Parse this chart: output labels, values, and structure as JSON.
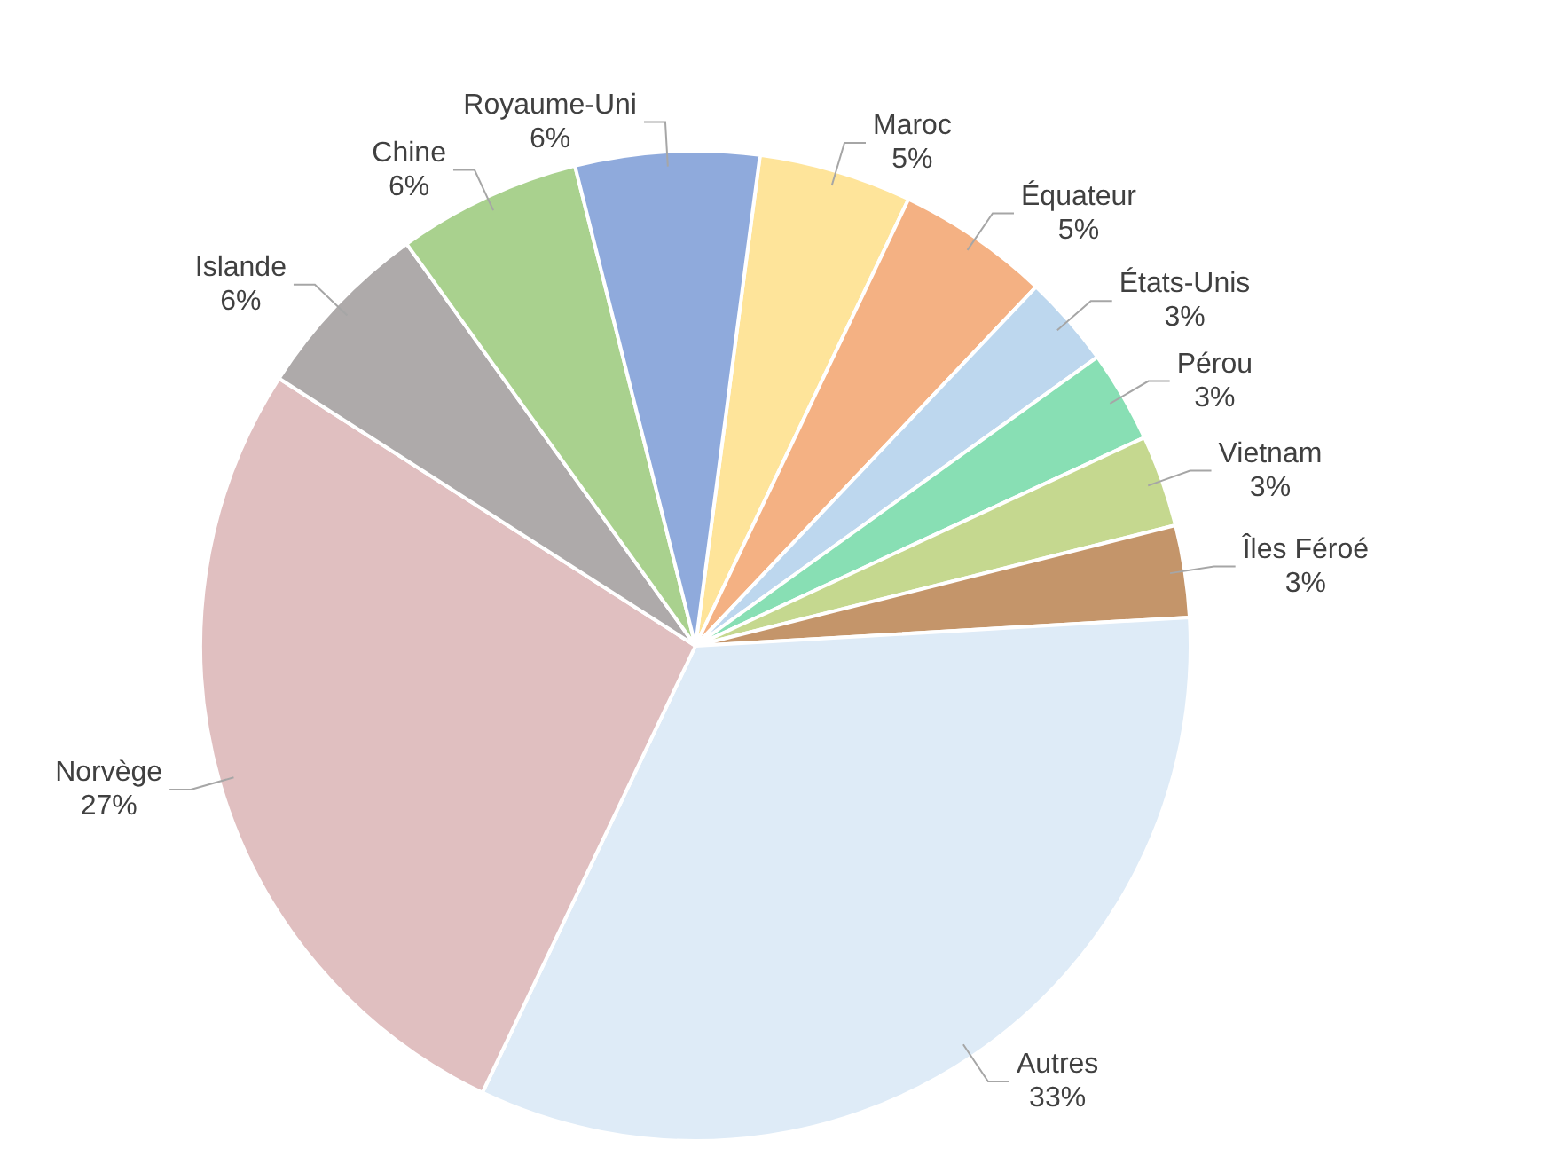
{
  "chart_data": {
    "type": "pie",
    "categories": [
      "Maroc",
      "Équateur",
      "États-Unis",
      "Pérou",
      "Vietnam",
      "Îles Féroé",
      "Autres",
      "Norvège",
      "Islande",
      "Chine",
      "Royaume-Uni"
    ],
    "values": [
      5,
      5,
      3,
      3,
      3,
      3,
      33,
      27,
      6,
      6,
      6
    ],
    "value_labels": [
      "5%",
      "5%",
      "3%",
      "3%",
      "3%",
      "3%",
      "33%",
      "27%",
      "6%",
      "6%",
      "6%"
    ],
    "colors": [
      "#fee49a",
      "#f4b183",
      "#bdd7ee",
      "#88dfb4",
      "#c5d88f",
      "#c4956a",
      "#deebf7",
      "#e0bfc0",
      "#aeaaaa",
      "#a9d18e",
      "#8faadc"
    ],
    "legend": false
  }
}
